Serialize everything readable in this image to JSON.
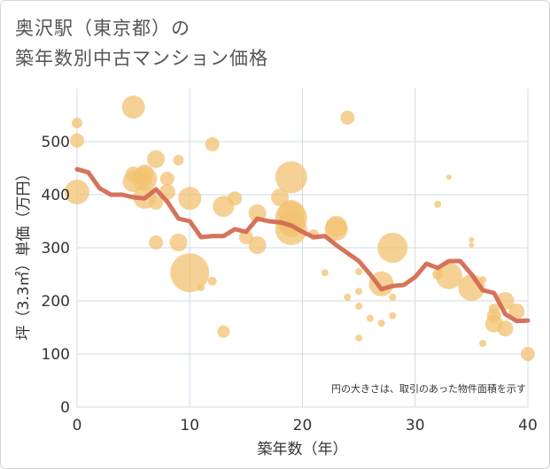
{
  "title_line1": "奥沢駅（東京都）の",
  "title_line2": "築年数別中古マンション価格",
  "chart_data": {
    "type": "scatter",
    "xlabel": "築年数（年）",
    "ylabel": "坪（3.3㎡）単価（万円）",
    "xlim": [
      0,
      40
    ],
    "ylim": [
      0,
      600
    ],
    "xticks": [
      0,
      10,
      20,
      30,
      40
    ],
    "yticks": [
      0,
      100,
      200,
      300,
      400,
      500
    ],
    "grid": true,
    "note": "円の大きさは、取引のあった物件面積を示す",
    "bubble_color": "#f3c172",
    "line_color": "#d46b52",
    "scatter": [
      {
        "x": 0,
        "y": 535,
        "r": 6
      },
      {
        "x": 0,
        "y": 502,
        "r": 8
      },
      {
        "x": 0,
        "y": 405,
        "r": 14
      },
      {
        "x": 5,
        "y": 565,
        "r": 13
      },
      {
        "x": 5,
        "y": 438,
        "r": 9
      },
      {
        "x": 5,
        "y": 425,
        "r": 12
      },
      {
        "x": 6,
        "y": 440,
        "r": 10
      },
      {
        "x": 6,
        "y": 430,
        "r": 14
      },
      {
        "x": 6,
        "y": 395,
        "r": 13
      },
      {
        "x": 6,
        "y": 428,
        "r": 9
      },
      {
        "x": 7,
        "y": 467,
        "r": 10
      },
      {
        "x": 7,
        "y": 385,
        "r": 8
      },
      {
        "x": 7,
        "y": 310,
        "r": 8
      },
      {
        "x": 8,
        "y": 430,
        "r": 8
      },
      {
        "x": 8,
        "y": 405,
        "r": 9
      },
      {
        "x": 9,
        "y": 465,
        "r": 6
      },
      {
        "x": 9,
        "y": 310,
        "r": 10
      },
      {
        "x": 10,
        "y": 393,
        "r": 13
      },
      {
        "x": 10,
        "y": 253,
        "r": 22
      },
      {
        "x": 11,
        "y": 225,
        "r": 4
      },
      {
        "x": 12,
        "y": 495,
        "r": 8
      },
      {
        "x": 12,
        "y": 237,
        "r": 5
      },
      {
        "x": 13,
        "y": 378,
        "r": 12
      },
      {
        "x": 13,
        "y": 142,
        "r": 7
      },
      {
        "x": 14,
        "y": 393,
        "r": 8
      },
      {
        "x": 15,
        "y": 320,
        "r": 8
      },
      {
        "x": 16,
        "y": 365,
        "r": 10
      },
      {
        "x": 16,
        "y": 305,
        "r": 10
      },
      {
        "x": 18,
        "y": 395,
        "r": 10
      },
      {
        "x": 19,
        "y": 433,
        "r": 18
      },
      {
        "x": 19,
        "y": 365,
        "r": 15
      },
      {
        "x": 19,
        "y": 357,
        "r": 18
      },
      {
        "x": 19,
        "y": 345,
        "r": 15
      },
      {
        "x": 19,
        "y": 335,
        "r": 18
      },
      {
        "x": 21,
        "y": 325,
        "r": 6
      },
      {
        "x": 22,
        "y": 253,
        "r": 4
      },
      {
        "x": 23,
        "y": 340,
        "r": 12
      },
      {
        "x": 23,
        "y": 335,
        "r": 13
      },
      {
        "x": 24,
        "y": 545,
        "r": 8
      },
      {
        "x": 24,
        "y": 207,
        "r": 4
      },
      {
        "x": 25,
        "y": 255,
        "r": 4
      },
      {
        "x": 25,
        "y": 218,
        "r": 4
      },
      {
        "x": 25,
        "y": 190,
        "r": 4
      },
      {
        "x": 25,
        "y": 130,
        "r": 4
      },
      {
        "x": 26,
        "y": 167,
        "r": 4
      },
      {
        "x": 27,
        "y": 232,
        "r": 14
      },
      {
        "x": 27,
        "y": 158,
        "r": 4
      },
      {
        "x": 28,
        "y": 300,
        "r": 17
      },
      {
        "x": 28,
        "y": 207,
        "r": 4
      },
      {
        "x": 28,
        "y": 172,
        "r": 4
      },
      {
        "x": 32,
        "y": 382,
        "r": 4
      },
      {
        "x": 32,
        "y": 250,
        "r": 6
      },
      {
        "x": 33,
        "y": 433,
        "r": 3
      },
      {
        "x": 33,
        "y": 247,
        "r": 15
      },
      {
        "x": 35,
        "y": 315,
        "r": 3
      },
      {
        "x": 35,
        "y": 305,
        "r": 3
      },
      {
        "x": 35,
        "y": 225,
        "r": 15
      },
      {
        "x": 36,
        "y": 240,
        "r": 4
      },
      {
        "x": 36,
        "y": 120,
        "r": 4
      },
      {
        "x": 37,
        "y": 185,
        "r": 6
      },
      {
        "x": 37,
        "y": 172,
        "r": 8
      },
      {
        "x": 37,
        "y": 157,
        "r": 10
      },
      {
        "x": 38,
        "y": 200,
        "r": 10
      },
      {
        "x": 38,
        "y": 148,
        "r": 9
      },
      {
        "x": 39,
        "y": 180,
        "r": 9
      },
      {
        "x": 40,
        "y": 100,
        "r": 8
      }
    ],
    "line": {
      "x": [
        0,
        1,
        2,
        3,
        4,
        5,
        6,
        7,
        8,
        9,
        10,
        11,
        12,
        13,
        14,
        15,
        16,
        17,
        18,
        19,
        20,
        21,
        22,
        23,
        24,
        25,
        26,
        27,
        28,
        29,
        30,
        31,
        32,
        33,
        34,
        35,
        36,
        37,
        38,
        39,
        40
      ],
      "y": [
        448,
        442,
        412,
        400,
        400,
        395,
        393,
        410,
        387,
        355,
        350,
        320,
        322,
        322,
        335,
        330,
        355,
        350,
        348,
        342,
        330,
        320,
        322,
        305,
        290,
        275,
        250,
        222,
        228,
        230,
        245,
        270,
        262,
        275,
        275,
        250,
        220,
        215,
        175,
        162,
        163
      ]
    }
  }
}
